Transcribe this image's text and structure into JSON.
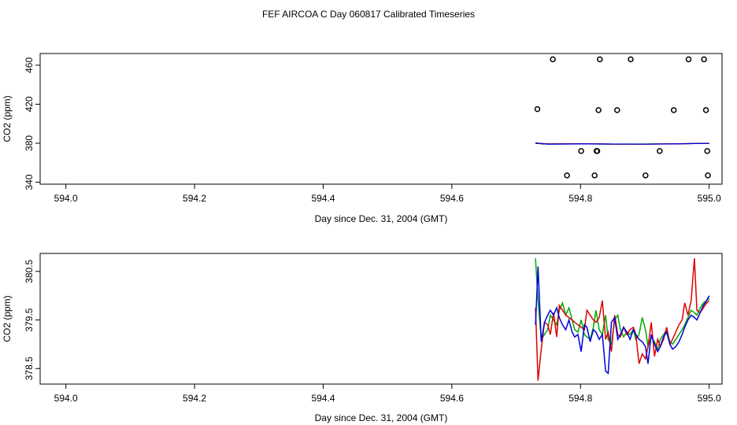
{
  "figure": {
    "title": "FEF AIRCOA C  Day 060817  Calibrated Timeseries"
  },
  "chart_data": [
    {
      "type": "scatter",
      "title": "",
      "xlabel": "Day since Dec. 31, 2004 (GMT)",
      "ylabel": "CO2 (ppm)",
      "xlim": [
        593.96,
        595.02
      ],
      "ylim": [
        338,
        472
      ],
      "x_ticks": [
        "594.0",
        "594.2",
        "594.4",
        "594.6",
        "594.8",
        "595.0"
      ],
      "x_tick_values": [
        594.0,
        594.2,
        594.4,
        594.6,
        594.8,
        595.0
      ],
      "y_ticks": [
        "340",
        "380",
        "420",
        "460"
      ],
      "y_tick_values": [
        340,
        380,
        420,
        460
      ],
      "colors": {
        "points": "#000000",
        "line1": "#00aa00",
        "line2": "#dd0000",
        "line3": "#0000dd"
      },
      "points": [
        [
          594.733,
          415
        ],
        [
          594.757,
          466
        ],
        [
          594.779,
          347
        ],
        [
          594.801,
          372
        ],
        [
          594.822,
          347
        ],
        [
          594.825,
          372
        ],
        [
          594.826,
          372
        ],
        [
          594.828,
          414
        ],
        [
          594.83,
          466
        ],
        [
          594.857,
          414
        ],
        [
          594.878,
          466
        ],
        [
          594.901,
          347
        ],
        [
          594.923,
          372
        ],
        [
          594.945,
          414
        ],
        [
          594.968,
          466
        ],
        [
          594.992,
          466
        ],
        [
          594.995,
          414
        ],
        [
          594.997,
          372
        ],
        [
          594.998,
          347
        ]
      ],
      "series": [
        {
          "values": [
            [
              594.73,
              380.6
            ],
            [
              594.74,
              379.2
            ],
            [
              594.8,
              379.6
            ],
            [
              594.85,
              379.0
            ],
            [
              594.9,
              379.2
            ],
            [
              594.95,
              379.4
            ],
            [
              595.0,
              380.0
            ]
          ]
        },
        {
          "values": [
            [
              594.73,
              379.8
            ],
            [
              594.75,
              379.3
            ],
            [
              594.8,
              379.5
            ],
            [
              594.85,
              379.1
            ],
            [
              594.9,
              379.0
            ],
            [
              594.95,
              379.5
            ],
            [
              595.0,
              379.9
            ]
          ]
        },
        {
          "values": [
            [
              594.73,
              380.3
            ],
            [
              594.75,
              379.0
            ],
            [
              594.8,
              379.3
            ],
            [
              594.85,
              379.2
            ],
            [
              594.9,
              379.1
            ],
            [
              594.95,
              379.3
            ],
            [
              595.0,
              379.9
            ]
          ]
        }
      ]
    },
    {
      "type": "line",
      "title": "",
      "xlabel": "Day since Dec. 31, 2004 (GMT)",
      "ylabel": "CO2 (ppm)",
      "xlim": [
        593.96,
        595.02
      ],
      "ylim": [
        378.18,
        380.87
      ],
      "x_ticks": [
        "594.0",
        "594.2",
        "594.4",
        "594.6",
        "594.8",
        "595.0"
      ],
      "x_tick_values": [
        594.0,
        594.2,
        594.4,
        594.6,
        594.8,
        595.0
      ],
      "y_ticks": [
        "378.5",
        "379.5",
        "380.5"
      ],
      "y_tick_values": [
        378.5,
        379.5,
        380.5
      ],
      "x": [
        594.73,
        594.734,
        594.739,
        594.744,
        594.749,
        594.753,
        594.758,
        594.763,
        594.767,
        594.772,
        594.777,
        594.782,
        594.787,
        594.791,
        594.796,
        594.801,
        594.806,
        594.81,
        594.815,
        594.82,
        594.824,
        594.829,
        594.834,
        594.839,
        594.843,
        594.848,
        594.853,
        594.858,
        594.862,
        594.867,
        594.872,
        594.877,
        594.882,
        594.886,
        594.891,
        594.896,
        594.901,
        594.905,
        594.91,
        594.915,
        594.92,
        594.924,
        594.929,
        594.934,
        594.939,
        594.943,
        594.948,
        594.953,
        594.958,
        594.962,
        594.967,
        594.972,
        594.977,
        594.981,
        594.986,
        594.991,
        594.996,
        595.0
      ],
      "series": [
        {
          "values": [
            380.77,
            379.9,
            379.1,
            379.2,
            379.3,
            379.6,
            379.5,
            379.4,
            379.7,
            379.85,
            379.6,
            379.75,
            379.5,
            379.3,
            379.25,
            379.5,
            379.2,
            379.15,
            379.1,
            379.35,
            379.7,
            379.3,
            379.2,
            379.6,
            379.1,
            379.0,
            379.5,
            379.6,
            379.3,
            379.15,
            379.25,
            379.2,
            379.3,
            379.1,
            379.2,
            379.55,
            379.3,
            378.95,
            379.15,
            379.05,
            378.9,
            379.1,
            379.2,
            379.3,
            379.05,
            379.0,
            379.1,
            379.2,
            379.3,
            379.4,
            379.55,
            379.7,
            379.65,
            379.6,
            379.75,
            379.85,
            379.9,
            379.95
          ]
        },
        {
          "values": [
            379.75,
            378.25,
            378.9,
            379.45,
            379.4,
            379.2,
            379.65,
            379.15,
            379.8,
            379.7,
            379.6,
            379.55,
            379.5,
            379.45,
            379.4,
            379.35,
            379.3,
            379.7,
            379.6,
            379.5,
            379.45,
            379.55,
            379.9,
            379.1,
            379.25,
            378.85,
            379.6,
            379.2,
            379.15,
            379.35,
            379.2,
            379.3,
            379.35,
            379.2,
            378.6,
            378.8,
            378.7,
            378.95,
            379.45,
            378.75,
            379.1,
            378.95,
            379.1,
            379.35,
            379.0,
            379.1,
            379.25,
            379.4,
            379.5,
            379.85,
            379.6,
            379.9,
            380.77,
            379.7,
            379.65,
            379.75,
            379.85,
            379.9
          ]
        },
        {
          "values": [
            379.4,
            380.6,
            379.05,
            379.45,
            379.6,
            379.7,
            379.6,
            379.75,
            379.55,
            379.4,
            379.3,
            379.5,
            379.25,
            379.15,
            379.2,
            378.85,
            379.4,
            379.35,
            379.05,
            379.3,
            379.25,
            379.1,
            379.2,
            378.45,
            378.4,
            379.45,
            379.55,
            379.1,
            379.2,
            379.35,
            379.25,
            379.1,
            379.3,
            379.2,
            379.1,
            379.05,
            378.95,
            378.6,
            379.2,
            379.0,
            378.85,
            378.95,
            379.15,
            379.25,
            379.0,
            378.9,
            378.95,
            379.05,
            379.2,
            379.35,
            379.5,
            379.6,
            379.55,
            379.5,
            379.65,
            379.8,
            379.9,
            380.0
          ]
        }
      ],
      "colors": {
        "series": [
          "#00aa00",
          "#dd0000",
          "#0000dd"
        ]
      }
    }
  ]
}
